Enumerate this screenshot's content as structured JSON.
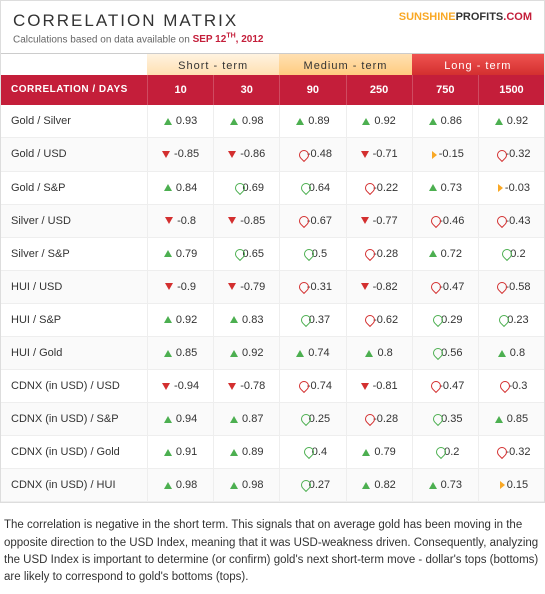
{
  "title": "CORRELATION MATRIX",
  "subtitle_prefix": "Calculations based on data available on",
  "date_month": "SEP 12",
  "date_suffix": "TH",
  "date_year": ", 2012",
  "logo_sun": "SUNSHINE",
  "logo_rest": "PROFITS",
  "logo_dot": ".COM",
  "terms": {
    "st": "Short - term",
    "mt": "Medium - term",
    "lt": "Long - term"
  },
  "head_label": "CORRELATION / DAYS",
  "days": [
    "10",
    "30",
    "90",
    "250",
    "750",
    "1500"
  ],
  "rows": [
    {
      "label": "Gold / Silver",
      "cells": [
        {
          "a": "up",
          "v": "0.93"
        },
        {
          "a": "up",
          "v": "0.98"
        },
        {
          "a": "up",
          "v": "0.89"
        },
        {
          "a": "up",
          "v": "0.92"
        },
        {
          "a": "up",
          "v": "0.86"
        },
        {
          "a": "up",
          "v": "0.92"
        }
      ]
    },
    {
      "label": "Gold / USD",
      "cells": [
        {
          "a": "down",
          "v": "-0.85"
        },
        {
          "a": "down",
          "v": "-0.86"
        },
        {
          "a": "cr",
          "v": "-0.48"
        },
        {
          "a": "down",
          "v": "-0.71"
        },
        {
          "a": "side",
          "v": "-0.15"
        },
        {
          "a": "cr",
          "v": "-0.32"
        }
      ]
    },
    {
      "label": "Gold / S&P",
      "cells": [
        {
          "a": "up",
          "v": "0.84"
        },
        {
          "a": "cg",
          "v": "0.69"
        },
        {
          "a": "cg",
          "v": "0.64"
        },
        {
          "a": "cr",
          "v": "-0.22"
        },
        {
          "a": "up",
          "v": "0.73"
        },
        {
          "a": "side",
          "v": "-0.03"
        }
      ]
    },
    {
      "label": "Silver / USD",
      "cells": [
        {
          "a": "down",
          "v": "-0.8"
        },
        {
          "a": "down",
          "v": "-0.85"
        },
        {
          "a": "cr",
          "v": "-0.67"
        },
        {
          "a": "down",
          "v": "-0.77"
        },
        {
          "a": "cr",
          "v": "-0.46"
        },
        {
          "a": "cr",
          "v": "-0.43"
        }
      ]
    },
    {
      "label": "Silver / S&P",
      "cells": [
        {
          "a": "up",
          "v": "0.79"
        },
        {
          "a": "cg",
          "v": "0.65"
        },
        {
          "a": "cg",
          "v": "0.5"
        },
        {
          "a": "cr",
          "v": "-0.28"
        },
        {
          "a": "up",
          "v": "0.72"
        },
        {
          "a": "cg",
          "v": "0.2"
        }
      ]
    },
    {
      "label": "HUI / USD",
      "cells": [
        {
          "a": "down",
          "v": "-0.9"
        },
        {
          "a": "down",
          "v": "-0.79"
        },
        {
          "a": "cr",
          "v": "-0.31"
        },
        {
          "a": "down",
          "v": "-0.82"
        },
        {
          "a": "cr",
          "v": "-0.47"
        },
        {
          "a": "cr",
          "v": "-0.58"
        }
      ]
    },
    {
      "label": "HUI / S&P",
      "cells": [
        {
          "a": "up",
          "v": "0.92"
        },
        {
          "a": "up",
          "v": "0.83"
        },
        {
          "a": "cg",
          "v": "0.37"
        },
        {
          "a": "cr",
          "v": "-0.62"
        },
        {
          "a": "cg",
          "v": "0.29"
        },
        {
          "a": "cg",
          "v": "0.23"
        }
      ]
    },
    {
      "label": "HUI / Gold",
      "cells": [
        {
          "a": "up",
          "v": "0.85"
        },
        {
          "a": "up",
          "v": "0.92"
        },
        {
          "a": "up",
          "v": "0.74"
        },
        {
          "a": "up",
          "v": "0.8"
        },
        {
          "a": "cg",
          "v": "0.56"
        },
        {
          "a": "up",
          "v": "0.8"
        }
      ]
    },
    {
      "label": "CDNX (in USD) / USD",
      "cells": [
        {
          "a": "down",
          "v": "-0.94"
        },
        {
          "a": "down",
          "v": "-0.78"
        },
        {
          "a": "cr",
          "v": "-0.74"
        },
        {
          "a": "down",
          "v": "-0.81"
        },
        {
          "a": "cr",
          "v": "-0.47"
        },
        {
          "a": "cr",
          "v": "-0.3"
        }
      ]
    },
    {
      "label": "CDNX (in USD) / S&P",
      "cells": [
        {
          "a": "up",
          "v": "0.94"
        },
        {
          "a": "up",
          "v": "0.87"
        },
        {
          "a": "cg",
          "v": "0.25"
        },
        {
          "a": "cr",
          "v": "-0.28"
        },
        {
          "a": "cg",
          "v": "0.35"
        },
        {
          "a": "up",
          "v": "0.85"
        }
      ]
    },
    {
      "label": "CDNX (in USD) / Gold",
      "cells": [
        {
          "a": "up",
          "v": "0.91"
        },
        {
          "a": "up",
          "v": "0.89"
        },
        {
          "a": "cg",
          "v": "0.4"
        },
        {
          "a": "up",
          "v": "0.79"
        },
        {
          "a": "cg",
          "v": "0.2"
        },
        {
          "a": "cr",
          "v": "-0.32"
        }
      ]
    },
    {
      "label": "CDNX (in USD) / HUI",
      "cells": [
        {
          "a": "up",
          "v": "0.98"
        },
        {
          "a": "up",
          "v": "0.98"
        },
        {
          "a": "cg",
          "v": "0.27"
        },
        {
          "a": "up",
          "v": "0.82"
        },
        {
          "a": "up",
          "v": "0.73"
        },
        {
          "a": "side",
          "v": "0.15"
        }
      ]
    }
  ],
  "footer": "The correlation is negative in the short term. This signals that on average gold has been moving in the opposite direction to the USD Index, meaning that it was USD-weakness driven. Consequently, analyzing the USD Index is important to determine (or confirm) gold's next short-term move - dollar's tops (bottoms) are likely to correspond to gold's bottoms (tops)."
}
